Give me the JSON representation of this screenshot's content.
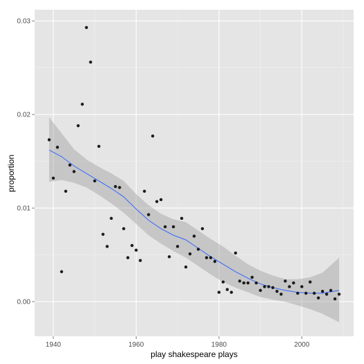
{
  "chart_data": {
    "type": "scatter",
    "xlabel": "play shakespeare plays",
    "ylabel": "proportion",
    "xlim": [
      1935.5,
      2012.5
    ],
    "ylim": [
      -0.0037,
      0.0312
    ],
    "x_ticks": [
      1940,
      1960,
      1980,
      2000
    ],
    "x_tick_labels": [
      "1940",
      "1960",
      "1980",
      "2000"
    ],
    "y_ticks": [
      0.0,
      0.01,
      0.02,
      0.03
    ],
    "y_tick_labels": [
      "0.00",
      "0.01",
      "0.02",
      "0.03"
    ],
    "grid": true,
    "background": "#e5e5e5",
    "gridline_color": "#ffffff",
    "point_color": "#1a1a1a",
    "trend_color": "#3366ff",
    "band_color": "#999999",
    "points": [
      [
        1939,
        0.0173
      ],
      [
        1940,
        0.0132
      ],
      [
        1941,
        0.0165
      ],
      [
        1942,
        0.0032
      ],
      [
        1943,
        0.0118
      ],
      [
        1944,
        0.0146
      ],
      [
        1945,
        0.0139
      ],
      [
        1946,
        0.0188
      ],
      [
        1947,
        0.0211
      ],
      [
        1948,
        0.0293
      ],
      [
        1949,
        0.0256
      ],
      [
        1950,
        0.0129
      ],
      [
        1951,
        0.0166
      ],
      [
        1952,
        0.0072
      ],
      [
        1953,
        0.0059
      ],
      [
        1954,
        0.0089
      ],
      [
        1955,
        0.0123
      ],
      [
        1956,
        0.0122
      ],
      [
        1957,
        0.0078
      ],
      [
        1958,
        0.0047
      ],
      [
        1959,
        0.006
      ],
      [
        1960,
        0.0055
      ],
      [
        1961,
        0.0044
      ],
      [
        1962,
        0.0118
      ],
      [
        1963,
        0.0093
      ],
      [
        1964,
        0.0177
      ],
      [
        1965,
        0.0107
      ],
      [
        1966,
        0.0109
      ],
      [
        1967,
        0.008
      ],
      [
        1968,
        0.0048
      ],
      [
        1969,
        0.008
      ],
      [
        1970,
        0.0059
      ],
      [
        1971,
        0.0089
      ],
      [
        1972,
        0.0037
      ],
      [
        1973,
        0.0051
      ],
      [
        1974,
        0.007
      ],
      [
        1975,
        0.0056
      ],
      [
        1976,
        0.0078
      ],
      [
        1977,
        0.0047
      ],
      [
        1978,
        0.0047
      ],
      [
        1979,
        0.0043
      ],
      [
        1980,
        0.001
      ],
      [
        1981,
        0.0021
      ],
      [
        1982,
        0.0013
      ],
      [
        1983,
        0.001
      ],
      [
        1984,
        0.0052
      ],
      [
        1985,
        0.0022
      ],
      [
        1986,
        0.002
      ],
      [
        1987,
        0.002
      ],
      [
        1988,
        0.0026
      ],
      [
        1989,
        0.002
      ],
      [
        1990,
        0.0012
      ],
      [
        1991,
        0.0016
      ],
      [
        1992,
        0.0016
      ],
      [
        1993,
        0.0015
      ],
      [
        1994,
        0.0011
      ],
      [
        1995,
        0.0008
      ],
      [
        1996,
        0.0022
      ],
      [
        1997,
        0.0016
      ],
      [
        1998,
        0.002
      ],
      [
        1999,
        0.0009
      ],
      [
        2000,
        0.0016
      ],
      [
        2001,
        0.0009
      ],
      [
        2002,
        0.0021
      ],
      [
        2003,
        0.0009
      ],
      [
        2004,
        0.0004
      ],
      [
        2005,
        0.0011
      ],
      [
        2006,
        0.0008
      ],
      [
        2007,
        0.0012
      ],
      [
        2008,
        0.0003
      ],
      [
        2009,
        0.0008
      ]
    ],
    "trend": {
      "x": [
        1939,
        1942,
        1945,
        1948,
        1951,
        1954,
        1957,
        1960,
        1963,
        1966,
        1969,
        1972,
        1975,
        1978,
        1981,
        1984,
        1987,
        1990,
        1993,
        1996,
        1999,
        2002,
        2005,
        2009
      ],
      "y": [
        0.0162,
        0.0155,
        0.0145,
        0.0137,
        0.0129,
        0.0121,
        0.0112,
        0.0099,
        0.0087,
        0.0078,
        0.0071,
        0.0066,
        0.0057,
        0.0048,
        0.004,
        0.0032,
        0.0025,
        0.0019,
        0.0015,
        0.0012,
        0.001,
        0.0009,
        0.0009,
        0.0012
      ],
      "lower": [
        0.0128,
        0.013,
        0.0127,
        0.0122,
        0.0114,
        0.0105,
        0.0095,
        0.0083,
        0.0071,
        0.0062,
        0.0054,
        0.0047,
        0.0038,
        0.0029,
        0.0021,
        0.0015,
        0.001,
        0.0005,
        0.0002,
        0.0,
        -0.0004,
        -0.0008,
        -0.0013,
        -0.0022
      ],
      "upper": [
        0.0197,
        0.018,
        0.0163,
        0.0152,
        0.0144,
        0.0137,
        0.0129,
        0.0115,
        0.0103,
        0.0094,
        0.0088,
        0.0085,
        0.0076,
        0.0067,
        0.0059,
        0.0049,
        0.004,
        0.0033,
        0.0028,
        0.0024,
        0.0024,
        0.0026,
        0.0031,
        0.0047
      ]
    }
  }
}
